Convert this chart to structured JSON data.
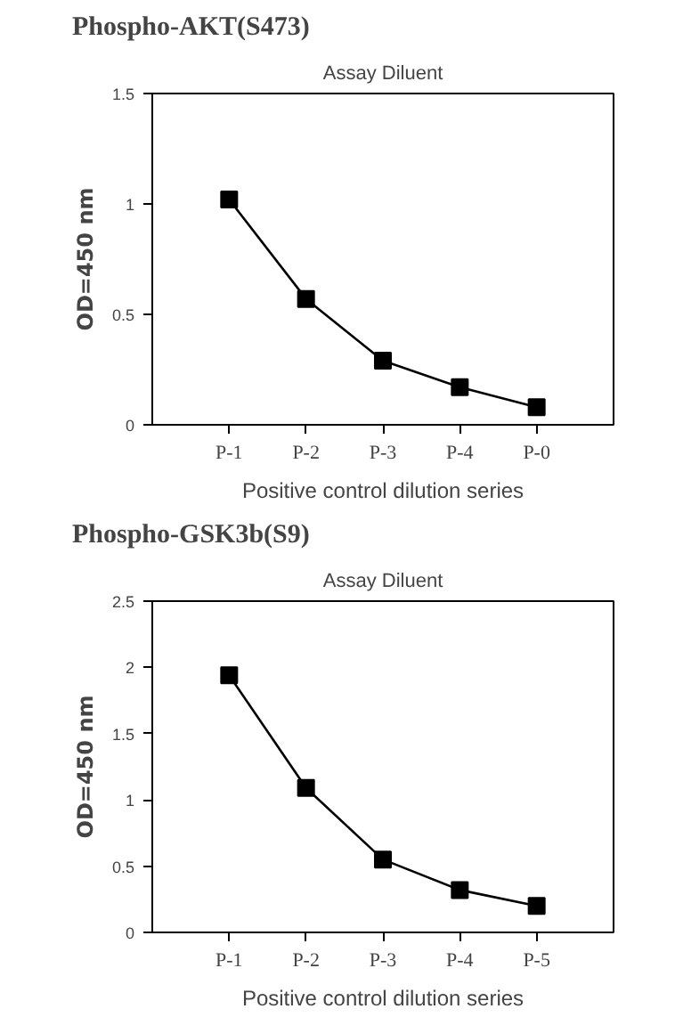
{
  "chart_data": [
    {
      "type": "line",
      "title": "Phospho-AKT(S473)",
      "subtitle": "Assay Diluent",
      "xlabel": "Positive control dilution series",
      "ylabel": "OD=450 nm",
      "categories": [
        "P-1",
        "P-2",
        "P-3",
        "P-4",
        "P-0"
      ],
      "values": [
        1.02,
        0.57,
        0.29,
        0.17,
        0.08
      ],
      "color": "#000000",
      "marker": "square",
      "line_style": "solid",
      "ylim": [
        0,
        1.5
      ],
      "yticks": [
        0,
        0.5,
        1,
        1.5
      ],
      "grid": false
    },
    {
      "type": "line",
      "title": "Phospho-GSK3b(S9)",
      "subtitle": "Assay Diluent",
      "xlabel": "Positive control dilution series",
      "ylabel": "OD=450 nm",
      "categories": [
        "P-1",
        "P-2",
        "P-3",
        "P-4",
        "P-5"
      ],
      "values": [
        1.94,
        1.09,
        0.55,
        0.32,
        0.2
      ],
      "color": "#000000",
      "marker": "square",
      "line_style": "solid",
      "ylim": [
        0,
        2.5
      ],
      "yticks": [
        0,
        0.5,
        1,
        1.5,
        2,
        2.5
      ],
      "grid": false
    }
  ]
}
